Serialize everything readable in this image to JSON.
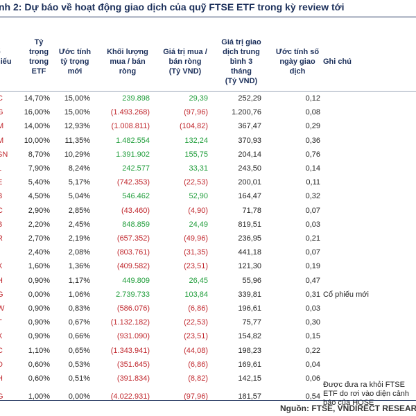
{
  "title": "nh 2: Dự báo về hoạt động giao dịch của quỹ FTSE ETF trong kỳ review tới",
  "headers": {
    "code": "ổ\nhiếu",
    "current": "Tỷ\ntrọng\ntrong\nETF",
    "new": "Ước tính\ntỷ trọng\nmới",
    "volume": "Khối lượng\nmua / bán\nròng",
    "value": "Giá trị mua /\nbán ròng\n(Tỷ VND)",
    "adv": "Giá trị giao\ndịch trung\nbình 3\ntháng\n(Tỷ VND)",
    "days": "Ước tính số\nngày giao\ndịch",
    "note": "Ghi chú"
  },
  "rows": [
    {
      "code": "C",
      "cur": "14,70%",
      "new": "15,00%",
      "vol": "239.898",
      "val": "29,39",
      "adv": "252,29",
      "days": "0,12",
      "note": "",
      "sign": "pos"
    },
    {
      "code": "G",
      "cur": "16,00%",
      "new": "15,00%",
      "vol": "(1.493.268)",
      "val": "(97,96)",
      "adv": "1.200,76",
      "days": "0,08",
      "note": "",
      "sign": "neg"
    },
    {
      "code": "M",
      "cur": "14,00%",
      "new": "12,93%",
      "vol": "(1.008.811)",
      "val": "(104,82)",
      "adv": "367,47",
      "days": "0,29",
      "note": "",
      "sign": "neg"
    },
    {
      "code": "M",
      "cur": "10,00%",
      "new": "11,35%",
      "vol": "1.482.554",
      "val": "132,24",
      "adv": "370,93",
      "days": "0,36",
      "note": "",
      "sign": "pos"
    },
    {
      "code": "SN",
      "cur": "8,70%",
      "new": "10,29%",
      "vol": "1.391.902",
      "val": "155,75",
      "adv": "204,14",
      "days": "0,76",
      "note": "",
      "sign": "pos"
    },
    {
      "code": "L",
      "cur": "7,90%",
      "new": "8,24%",
      "vol": "242.577",
      "val": "33,31",
      "adv": "243,50",
      "days": "0,14",
      "note": "",
      "sign": "pos"
    },
    {
      "code": "E",
      "cur": "5,40%",
      "new": "5,17%",
      "vol": "(742.353)",
      "val": "(22,53)",
      "adv": "200,01",
      "days": "0,11",
      "note": "",
      "sign": "neg"
    },
    {
      "code": "B",
      "cur": "4,50%",
      "new": "5,04%",
      "vol": "546.462",
      "val": "52,90",
      "adv": "164,47",
      "days": "0,32",
      "note": "",
      "sign": "pos"
    },
    {
      "code": "C",
      "cur": "2,90%",
      "new": "2,85%",
      "vol": "(43.460)",
      "val": "(4,90)",
      "adv": "71,78",
      "days": "0,07",
      "note": "",
      "sign": "neg"
    },
    {
      "code": "B",
      "cur": "2,20%",
      "new": "2,45%",
      "vol": "848.859",
      "val": "24,49",
      "adv": "819,51",
      "days": "0,03",
      "note": "",
      "sign": "pos"
    },
    {
      "code": "R",
      "cur": "2,70%",
      "new": "2,19%",
      "vol": "(657.352)",
      "val": "(49,96)",
      "adv": "236,95",
      "days": "0,21",
      "note": "",
      "sign": "neg"
    },
    {
      "code": "I",
      "cur": "2,40%",
      "new": "2,08%",
      "vol": "(803.761)",
      "val": "(31,35)",
      "adv": "441,18",
      "days": "0,07",
      "note": "",
      "sign": "neg"
    },
    {
      "code": "X",
      "cur": "1,60%",
      "new": "1,36%",
      "vol": "(409.582)",
      "val": "(23,51)",
      "adv": "121,30",
      "days": "0,19",
      "note": "",
      "sign": "neg"
    },
    {
      "code": "H",
      "cur": "0,90%",
      "new": "1,17%",
      "vol": "449.809",
      "val": "26,45",
      "adv": "55,96",
      "days": "0,47",
      "note": "",
      "sign": "pos"
    },
    {
      "code": "G",
      "cur": "0,00%",
      "new": "1,06%",
      "vol": "2.739.733",
      "val": "103,84",
      "adv": "339,81",
      "days": "0,31",
      "note": "Cổ phiếu mới",
      "sign": "pos"
    },
    {
      "code": "W",
      "cur": "0,90%",
      "new": "0,83%",
      "vol": "(586.076)",
      "val": "(6,86)",
      "adv": "196,61",
      "days": "0,03",
      "note": "",
      "sign": "neg"
    },
    {
      "code": "T",
      "cur": "0,90%",
      "new": "0,67%",
      "vol": "(1.132.182)",
      "val": "(22,53)",
      "adv": "75,77",
      "days": "0,30",
      "note": "",
      "sign": "neg"
    },
    {
      "code": "X",
      "cur": "0,90%",
      "new": "0,66%",
      "vol": "(931.090)",
      "val": "(23,51)",
      "adv": "154,82",
      "days": "0,15",
      "note": "",
      "sign": "neg"
    },
    {
      "code": "C",
      "cur": "1,10%",
      "new": "0,65%",
      "vol": "(1.343.941)",
      "val": "(44,08)",
      "adv": "198,23",
      "days": "0,22",
      "note": "",
      "sign": "neg"
    },
    {
      "code": "D",
      "cur": "0,60%",
      "new": "0,53%",
      "vol": "(351.645)",
      "val": "(6,86)",
      "adv": "169,61",
      "days": "0,04",
      "note": "",
      "sign": "neg"
    },
    {
      "code": "H",
      "cur": "0,60%",
      "new": "0,51%",
      "vol": "(391.834)",
      "val": "(8,82)",
      "adv": "142,15",
      "days": "0,06",
      "note": "",
      "sign": "neg"
    },
    {
      "code": "G",
      "cur": "1,00%",
      "new": "0,00%",
      "vol": "(4.022.931)",
      "val": "(97,96)",
      "adv": "181,57",
      "days": "0,54",
      "note": "Được đưa ra khỏi FTSE\nETF do rơi vào diện cảnh\nbáo của HOSE",
      "sign": "neg"
    }
  ],
  "source": "Nguồn: FTSE, VNDIRECT RESEARC"
}
